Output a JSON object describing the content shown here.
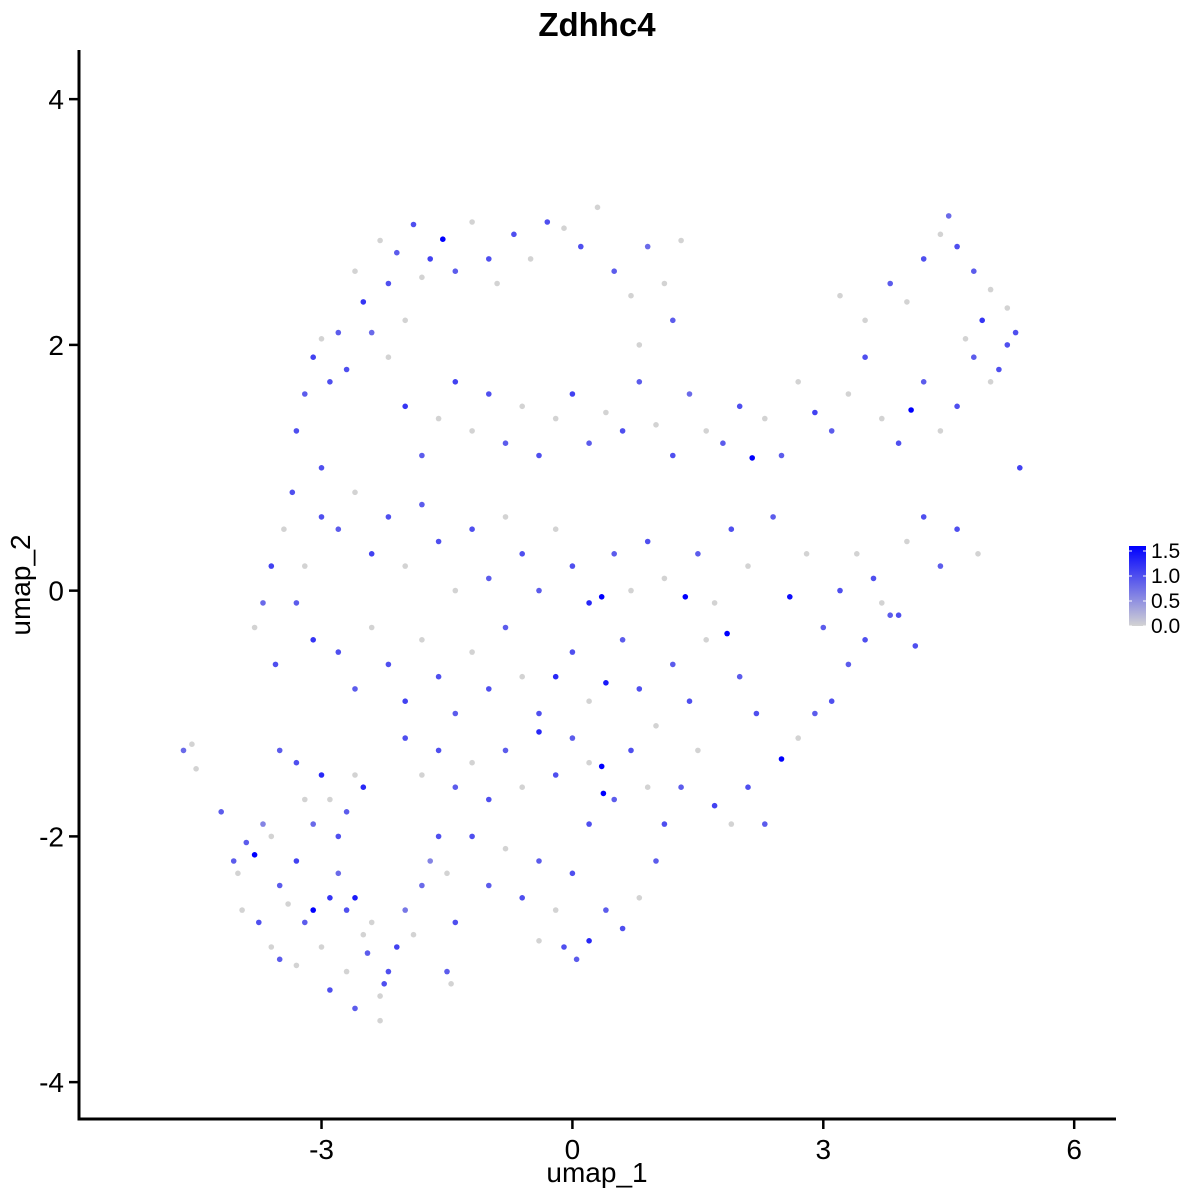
{
  "chart_data": {
    "type": "scatter",
    "title": "Zdhhc4",
    "xlabel": "umap_1",
    "ylabel": "umap_2",
    "xlim": [
      -5.9,
      6.5
    ],
    "ylim": [
      -4.3,
      4.4
    ],
    "x_ticks": [
      -3,
      0,
      3,
      6
    ],
    "x_tick_labels": [
      "-3",
      "0",
      "3",
      "6"
    ],
    "y_ticks": [
      -4,
      -2,
      0,
      2,
      4
    ],
    "y_tick_labels": [
      "-4",
      "-2",
      "0",
      "2",
      "4"
    ],
    "grid": false,
    "legend_position": "right",
    "color_scale": {
      "low_color": "#d3d3d3",
      "high_color": "#0000ff",
      "min": 0,
      "max": 1.6,
      "breaks": [
        0.0,
        0.5,
        1.0,
        1.5
      ],
      "labels": [
        "0.0",
        "0.5",
        "1.0",
        "1.5"
      ]
    },
    "points": [
      [
        -4.65,
        -1.3,
        0.8
      ],
      [
        -4.55,
        -1.25,
        0.0
      ],
      [
        -4.5,
        -1.45,
        0.0
      ],
      [
        -4.2,
        -1.8,
        0.9
      ],
      [
        -4.0,
        -2.3,
        0.0
      ],
      [
        -3.9,
        -2.05,
        0.9
      ],
      [
        -3.8,
        -2.15,
        1.6
      ],
      [
        -3.7,
        -1.9,
        0.6
      ],
      [
        -3.6,
        -2.0,
        0.0
      ],
      [
        -3.5,
        -2.4,
        0.9
      ],
      [
        -3.4,
        -2.55,
        0.0
      ],
      [
        -3.3,
        -2.2,
        1.1
      ],
      [
        -3.2,
        -2.7,
        0.9
      ],
      [
        -3.1,
        -2.6,
        1.6
      ],
      [
        -3.0,
        -2.9,
        0.0
      ],
      [
        -2.9,
        -2.5,
        1.2
      ],
      [
        -2.8,
        -2.3,
        0.8
      ],
      [
        -2.7,
        -2.6,
        1.0
      ],
      [
        -2.6,
        -2.5,
        1.4
      ],
      [
        -2.5,
        -2.8,
        0.0
      ],
      [
        -2.45,
        -2.95,
        0.9
      ],
      [
        -2.4,
        -2.7,
        0.0
      ],
      [
        -2.3,
        -3.3,
        0.0
      ],
      [
        -2.2,
        -3.1,
        1.0
      ],
      [
        -2.1,
        -2.9,
        1.1
      ],
      [
        -2.0,
        -2.6,
        0.7
      ],
      [
        -1.9,
        -2.8,
        0.0
      ],
      [
        -1.8,
        -2.4,
        0.8
      ],
      [
        -1.7,
        -2.2,
        0.6
      ],
      [
        -1.6,
        -2.0,
        1.0
      ],
      [
        -3.5,
        -1.3,
        0.9
      ],
      [
        -3.3,
        -1.4,
        1.0
      ],
      [
        -3.2,
        -1.7,
        0.0
      ],
      [
        -3.1,
        -1.9,
        0.8
      ],
      [
        -3.0,
        -1.5,
        1.3
      ],
      [
        -2.9,
        -1.7,
        0.0
      ],
      [
        -2.8,
        -2.0,
        1.0
      ],
      [
        -2.7,
        -1.8,
        0.9
      ],
      [
        -2.6,
        -1.5,
        0.0
      ],
      [
        -2.5,
        -1.6,
        1.3
      ],
      [
        -3.8,
        -0.3,
        0.0
      ],
      [
        -3.7,
        -0.1,
        0.8
      ],
      [
        -3.6,
        0.2,
        1.1
      ],
      [
        -3.55,
        -0.6,
        1.0
      ],
      [
        -3.45,
        0.5,
        0.0
      ],
      [
        -3.35,
        0.8,
        1.0
      ],
      [
        -3.3,
        -0.1,
        0.9
      ],
      [
        -3.2,
        0.2,
        0.0
      ],
      [
        -3.1,
        -0.4,
        1.2
      ],
      [
        -3.0,
        0.6,
        1.0
      ],
      [
        -3.3,
        1.3,
        1.0
      ],
      [
        -3.2,
        1.6,
        0.9
      ],
      [
        -3.1,
        1.9,
        1.1
      ],
      [
        -3.0,
        2.05,
        0.0
      ],
      [
        -2.9,
        1.7,
        1.0
      ],
      [
        -2.8,
        2.1,
        0.9
      ],
      [
        -2.7,
        1.8,
        1.0
      ],
      [
        -2.6,
        2.6,
        0.0
      ],
      [
        -2.5,
        2.35,
        1.2
      ],
      [
        -2.4,
        2.1,
        0.8
      ],
      [
        -2.3,
        2.85,
        0.0
      ],
      [
        -2.2,
        2.5,
        1.0
      ],
      [
        -2.1,
        2.75,
        0.9
      ],
      [
        -2.0,
        2.2,
        0.0
      ],
      [
        -1.9,
        2.98,
        1.0
      ],
      [
        -1.8,
        2.55,
        0.0
      ],
      [
        -1.7,
        2.7,
        1.1
      ],
      [
        -1.55,
        2.86,
        1.6
      ],
      [
        -1.4,
        2.6,
        0.9
      ],
      [
        -1.2,
        3.0,
        0.0
      ],
      [
        -1.0,
        2.7,
        1.0
      ],
      [
        -0.9,
        2.5,
        0.0
      ],
      [
        -0.7,
        2.9,
        1.0
      ],
      [
        -0.5,
        2.7,
        0.0
      ],
      [
        -0.3,
        3.0,
        1.0
      ],
      [
        -0.1,
        2.95,
        0.0
      ],
      [
        0.1,
        2.8,
        1.0
      ],
      [
        0.3,
        3.12,
        0.0
      ],
      [
        0.5,
        2.6,
        0.9
      ],
      [
        0.7,
        2.4,
        0.0
      ],
      [
        0.9,
        2.8,
        0.8
      ],
      [
        1.1,
        2.5,
        0.0
      ],
      [
        1.3,
        2.85,
        0.0
      ],
      [
        1.2,
        2.2,
        0.9
      ],
      [
        0.8,
        2.0,
        0.0
      ],
      [
        -2.2,
        1.9,
        0.0
      ],
      [
        -2.0,
        1.5,
        1.2
      ],
      [
        -1.8,
        1.1,
        0.9
      ],
      [
        -1.6,
        1.4,
        0.0
      ],
      [
        -1.4,
        1.7,
        1.1
      ],
      [
        -1.2,
        1.3,
        0.0
      ],
      [
        -1.0,
        1.6,
        1.0
      ],
      [
        -0.8,
        1.2,
        0.9
      ],
      [
        -0.6,
        1.5,
        0.0
      ],
      [
        -0.4,
        1.1,
        1.0
      ],
      [
        -0.2,
        1.4,
        0.0
      ],
      [
        0.0,
        1.6,
        1.1
      ],
      [
        0.2,
        1.2,
        0.9
      ],
      [
        0.4,
        1.45,
        0.0
      ],
      [
        0.6,
        1.3,
        1.0
      ],
      [
        0.8,
        1.7,
        0.9
      ],
      [
        1.0,
        1.35,
        0.0
      ],
      [
        1.2,
        1.1,
        1.0
      ],
      [
        1.4,
        1.6,
        0.8
      ],
      [
        1.6,
        1.3,
        0.0
      ],
      [
        1.8,
        1.2,
        0.9
      ],
      [
        2.0,
        1.5,
        1.0
      ],
      [
        2.15,
        1.08,
        1.6
      ],
      [
        2.3,
        1.4,
        0.0
      ],
      [
        2.5,
        1.1,
        0.9
      ],
      [
        2.7,
        1.7,
        0.0
      ],
      [
        2.9,
        1.45,
        1.1
      ],
      [
        3.1,
        1.3,
        0.9
      ],
      [
        3.3,
        1.6,
        0.0
      ],
      [
        3.5,
        1.9,
        1.0
      ],
      [
        3.7,
        1.4,
        0.0
      ],
      [
        3.9,
        1.2,
        1.0
      ],
      [
        4.05,
        1.47,
        1.6
      ],
      [
        4.2,
        1.7,
        0.9
      ],
      [
        4.4,
        1.3,
        0.0
      ],
      [
        4.6,
        1.5,
        1.0
      ],
      [
        4.8,
        1.9,
        0.9
      ],
      [
        5.0,
        1.7,
        0.0
      ],
      [
        5.2,
        2.0,
        1.0
      ],
      [
        5.35,
        1.0,
        1.1
      ],
      [
        3.2,
        2.4,
        0.0
      ],
      [
        3.5,
        2.2,
        0.0
      ],
      [
        3.8,
        2.5,
        0.9
      ],
      [
        4.0,
        2.35,
        0.0
      ],
      [
        4.2,
        2.7,
        1.0
      ],
      [
        4.4,
        2.9,
        0.0
      ],
      [
        4.5,
        3.05,
        0.8
      ],
      [
        4.6,
        2.8,
        1.0
      ],
      [
        4.8,
        2.6,
        0.9
      ],
      [
        5.0,
        2.45,
        0.0
      ],
      [
        5.2,
        2.3,
        0.0
      ],
      [
        5.3,
        2.1,
        1.0
      ],
      [
        4.9,
        2.2,
        1.2
      ],
      [
        4.7,
        2.05,
        0.0
      ],
      [
        5.1,
        1.8,
        1.0
      ],
      [
        -3.0,
        1.0,
        1.0
      ],
      [
        -2.8,
        0.5,
        0.9
      ],
      [
        -2.6,
        0.8,
        0.0
      ],
      [
        -2.4,
        0.3,
        1.1
      ],
      [
        -2.2,
        0.6,
        1.0
      ],
      [
        -2.0,
        0.2,
        0.0
      ],
      [
        -1.8,
        0.7,
        0.9
      ],
      [
        -1.6,
        0.4,
        1.0
      ],
      [
        -1.4,
        0.0,
        0.0
      ],
      [
        -1.2,
        0.5,
        1.0
      ],
      [
        -1.0,
        0.1,
        0.9
      ],
      [
        -0.8,
        0.6,
        0.0
      ],
      [
        -0.6,
        0.3,
        1.0
      ],
      [
        -0.4,
        0.0,
        0.9
      ],
      [
        -0.2,
        0.5,
        0.0
      ],
      [
        0.0,
        0.2,
        1.0
      ],
      [
        0.2,
        -0.1,
        1.3
      ],
      [
        0.35,
        -0.05,
        1.6
      ],
      [
        0.5,
        0.3,
        0.9
      ],
      [
        0.7,
        0.0,
        0.0
      ],
      [
        0.9,
        0.4,
        1.0
      ],
      [
        1.1,
        0.1,
        0.0
      ],
      [
        1.35,
        -0.05,
        1.6
      ],
      [
        1.5,
        0.3,
        0.9
      ],
      [
        1.7,
        -0.1,
        0.0
      ],
      [
        1.9,
        0.5,
        1.0
      ],
      [
        2.1,
        0.2,
        0.0
      ],
      [
        2.4,
        0.6,
        0.9
      ],
      [
        2.6,
        -0.05,
        1.5
      ],
      [
        2.8,
        0.3,
        0.0
      ],
      [
        3.0,
        -0.3,
        0.9
      ],
      [
        3.2,
        0.0,
        1.0
      ],
      [
        3.4,
        0.3,
        0.0
      ],
      [
        3.6,
        0.1,
        1.0
      ],
      [
        3.8,
        -0.2,
        0.9
      ],
      [
        4.0,
        0.4,
        0.0
      ],
      [
        4.2,
        0.6,
        1.0
      ],
      [
        4.4,
        0.2,
        0.9
      ],
      [
        4.6,
        0.5,
        1.0
      ],
      [
        4.85,
        0.3,
        0.0
      ],
      [
        -2.8,
        -0.5,
        1.0
      ],
      [
        -2.6,
        -0.8,
        0.9
      ],
      [
        -2.4,
        -0.3,
        0.0
      ],
      [
        -2.2,
        -0.6,
        1.0
      ],
      [
        -2.0,
        -0.9,
        1.1
      ],
      [
        -1.8,
        -0.4,
        0.0
      ],
      [
        -1.6,
        -0.7,
        1.0
      ],
      [
        -1.4,
        -1.0,
        0.9
      ],
      [
        -1.2,
        -0.5,
        0.0
      ],
      [
        -1.0,
        -0.8,
        1.0
      ],
      [
        -0.8,
        -0.3,
        0.9
      ],
      [
        -0.6,
        -0.7,
        0.0
      ],
      [
        -0.4,
        -1.0,
        1.0
      ],
      [
        -0.2,
        -0.7,
        1.3
      ],
      [
        0.0,
        -0.5,
        1.0
      ],
      [
        0.2,
        -0.9,
        0.0
      ],
      [
        0.4,
        -0.75,
        1.4
      ],
      [
        0.6,
        -0.4,
        0.9
      ],
      [
        0.8,
        -0.8,
        1.0
      ],
      [
        1.0,
        -1.1,
        0.0
      ],
      [
        1.2,
        -0.6,
        0.9
      ],
      [
        1.4,
        -0.9,
        1.0
      ],
      [
        1.6,
        -0.4,
        0.0
      ],
      [
        1.85,
        -0.35,
        1.6
      ],
      [
        2.0,
        -0.7,
        0.9
      ],
      [
        2.2,
        -1.0,
        1.0
      ],
      [
        2.5,
        -1.37,
        1.6
      ],
      [
        2.7,
        -1.2,
        0.0
      ],
      [
        2.9,
        -1.0,
        0.9
      ],
      [
        3.1,
        -0.9,
        1.0
      ],
      [
        3.3,
        -0.6,
        0.9
      ],
      [
        3.5,
        -0.4,
        1.0
      ],
      [
        3.7,
        -0.1,
        0.0
      ],
      [
        3.9,
        -0.2,
        1.0
      ],
      [
        4.1,
        -0.45,
        1.0
      ],
      [
        -2.0,
        -1.2,
        1.0
      ],
      [
        -1.8,
        -1.5,
        0.0
      ],
      [
        -1.6,
        -1.3,
        1.0
      ],
      [
        -1.4,
        -1.6,
        0.9
      ],
      [
        -1.2,
        -1.4,
        0.0
      ],
      [
        -1.0,
        -1.7,
        1.0
      ],
      [
        -0.8,
        -1.3,
        0.9
      ],
      [
        -0.6,
        -1.6,
        0.0
      ],
      [
        -0.4,
        -1.15,
        1.3
      ],
      [
        -0.2,
        -1.5,
        1.0
      ],
      [
        0.0,
        -1.2,
        0.9
      ],
      [
        0.2,
        -1.4,
        0.0
      ],
      [
        0.35,
        -1.43,
        1.6
      ],
      [
        0.5,
        -1.7,
        0.9
      ],
      [
        0.7,
        -1.3,
        1.0
      ],
      [
        0.9,
        -1.6,
        0.0
      ],
      [
        1.1,
        -1.9,
        1.0
      ],
      [
        1.3,
        -1.6,
        0.9
      ],
      [
        1.5,
        -1.3,
        0.0
      ],
      [
        1.7,
        -1.75,
        1.1
      ],
      [
        1.9,
        -1.9,
        0.0
      ],
      [
        2.1,
        -1.6,
        1.0
      ],
      [
        2.3,
        -1.9,
        0.9
      ],
      [
        0.37,
        -1.65,
        1.6
      ],
      [
        0.2,
        -1.9,
        1.0
      ],
      [
        -1.2,
        -2.0,
        1.0
      ],
      [
        -1.0,
        -2.4,
        0.9
      ],
      [
        -0.8,
        -2.1,
        0.0
      ],
      [
        -0.6,
        -2.5,
        1.0
      ],
      [
        -0.4,
        -2.2,
        0.9
      ],
      [
        -0.2,
        -2.6,
        0.0
      ],
      [
        0.0,
        -2.3,
        1.0
      ],
      [
        0.2,
        -2.85,
        1.3
      ],
      [
        0.4,
        -2.6,
        0.9
      ],
      [
        0.6,
        -2.75,
        1.0
      ],
      [
        0.8,
        -2.5,
        0.0
      ],
      [
        1.0,
        -2.2,
        0.9
      ],
      [
        -0.1,
        -2.9,
        1.0
      ],
      [
        0.05,
        -3.0,
        0.9
      ],
      [
        -0.4,
        -2.85,
        0.0
      ],
      [
        -1.5,
        -2.3,
        0.0
      ],
      [
        -1.4,
        -2.7,
        1.0
      ],
      [
        -1.5,
        -3.1,
        0.9
      ],
      [
        -1.45,
        -3.2,
        0.0
      ],
      [
        -2.3,
        -3.5,
        0.0
      ],
      [
        -2.25,
        -3.2,
        1.0
      ],
      [
        -2.6,
        -3.4,
        0.9
      ],
      [
        -2.7,
        -3.1,
        0.0
      ],
      [
        -2.9,
        -3.25,
        1.0
      ],
      [
        -3.3,
        -3.05,
        0.0
      ],
      [
        -3.5,
        -3.0,
        0.9
      ],
      [
        -3.6,
        -2.9,
        0.0
      ],
      [
        -3.75,
        -2.7,
        1.0
      ],
      [
        -3.95,
        -2.6,
        0.0
      ],
      [
        -4.05,
        -2.2,
        0.9
      ]
    ]
  }
}
